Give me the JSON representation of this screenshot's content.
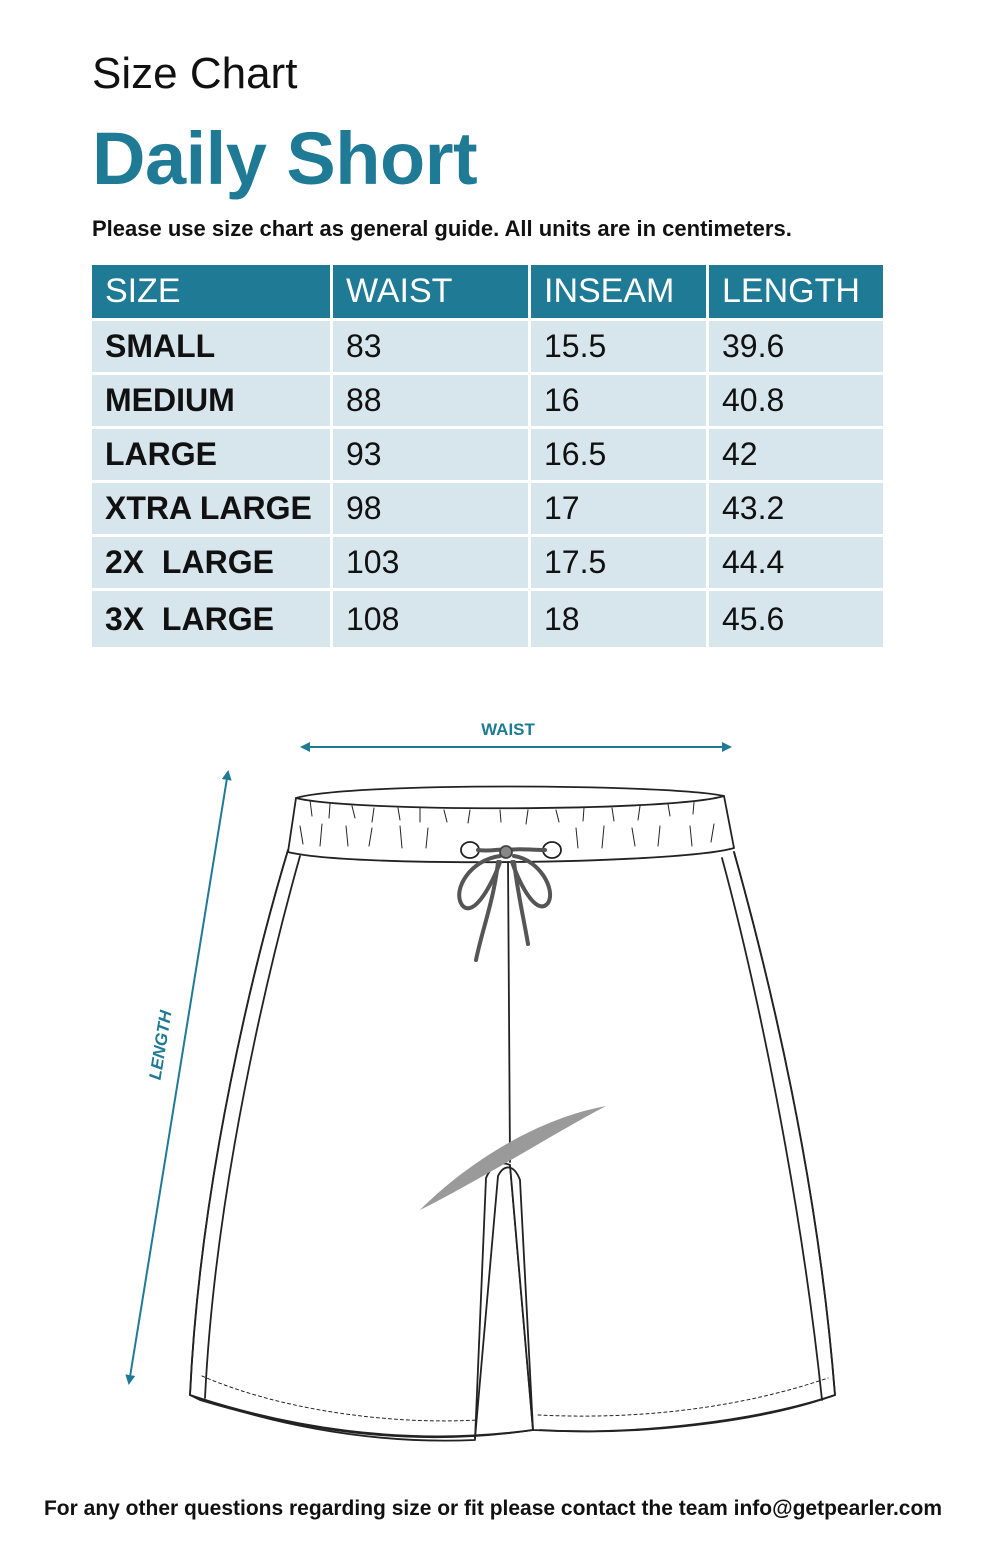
{
  "header": {
    "pre_title": "Size Chart",
    "title": "Daily Short",
    "note": "Please use size chart as general guide. All units are in centimeters."
  },
  "table": {
    "columns": [
      "SIZE",
      "WAIST",
      "INSEAM",
      "LENGTH"
    ],
    "rows": [
      {
        "size": "SMALL",
        "waist": "83",
        "inseam": "15.5",
        "length": "39.6"
      },
      {
        "size": "MEDIUM",
        "waist": "88",
        "inseam": "16",
        "length": "40.8"
      },
      {
        "size": "LARGE",
        "waist": "93",
        "inseam": "16.5",
        "length": "42"
      },
      {
        "size": "XTRA LARGE",
        "waist": "98",
        "inseam": "17",
        "length": "43.2"
      },
      {
        "size": "2X  LARGE",
        "waist": "103",
        "inseam": "17.5",
        "length": "44.4"
      },
      {
        "size": "3X  LARGE",
        "waist": "108",
        "inseam": "18",
        "length": "45.6"
      }
    ]
  },
  "diagram": {
    "waist_label": "WAIST",
    "length_label": "LENGTH",
    "icon": "shorts-outline-icon"
  },
  "footer": {
    "text": "For any other questions regarding size or fit please contact the team info@getpearler.com"
  },
  "colors": {
    "accent": "#1f7a96",
    "row_background": "#d7e6ed"
  }
}
